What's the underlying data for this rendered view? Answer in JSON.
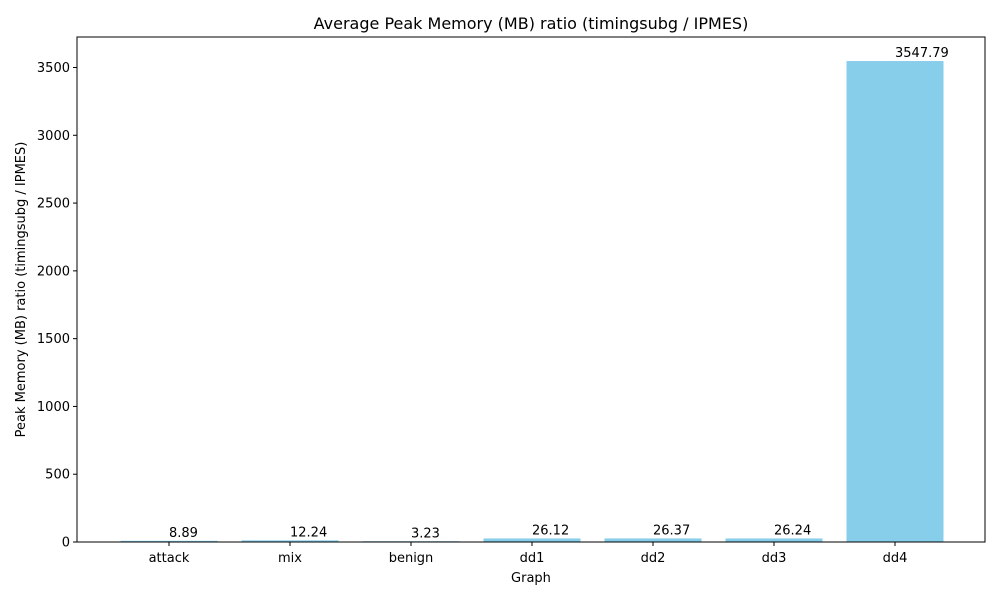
{
  "chart_data": {
    "type": "bar",
    "title": "Average Peak Memory (MB) ratio (timingsubg / IPMES)",
    "xlabel": "Graph",
    "ylabel": "Peak Memory (MB) ratio (timingsubg / IPMES)",
    "categories": [
      "attack",
      "mix",
      "benign",
      "dd1",
      "dd2",
      "dd3",
      "dd4"
    ],
    "values": [
      8.89,
      12.24,
      3.23,
      26.12,
      26.37,
      26.24,
      3547.79
    ],
    "data_labels": [
      "8.89",
      "12.24",
      "3.23",
      "26.12",
      "26.37",
      "26.24",
      "3547.79"
    ],
    "ylim": [
      0,
      3725
    ],
    "yticks": [
      0,
      500,
      1000,
      1500,
      2000,
      2500,
      3000,
      3500
    ],
    "ytick_labels": [
      "0",
      "500",
      "1000",
      "1500",
      "2000",
      "2500",
      "3000",
      "3500"
    ],
    "bar_color": "#87ceeb",
    "grid": false,
    "legend": "none"
  }
}
